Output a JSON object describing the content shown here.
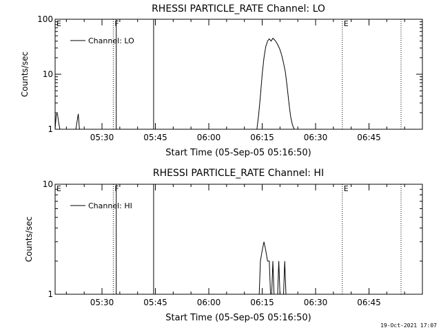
{
  "footer": {
    "timestamp": "19-Oct-2021 17:07"
  },
  "chart_data": [
    {
      "type": "line",
      "title": "RHESSI PARTICLE_RATE Channel: LO",
      "xlabel": "Start Time (05-Sep-05 05:16:50)",
      "ylabel": "Counts/sec",
      "xlim": [
        "05:16:50",
        "07:00:00"
      ],
      "ylim": [
        1,
        100
      ],
      "yscale": "log",
      "grid": false,
      "legend": {
        "placement": "top-left",
        "entries": [
          "Channel: LO"
        ]
      },
      "x_ticks": [
        "05:30",
        "05:45",
        "06:00",
        "06:15",
        "06:30",
        "06:45"
      ],
      "y_ticks": [
        "1",
        "10",
        "100"
      ],
      "markers": [
        {
          "label": "E",
          "time": "05:16:50",
          "style": "dotted"
        },
        {
          "label": "F",
          "time": "05:33:10",
          "style": "dotted"
        },
        {
          "label": "",
          "time": "05:34:00",
          "style": "solid"
        },
        {
          "label": "",
          "time": "05:44:30",
          "style": "solid"
        },
        {
          "label": "E",
          "time": "06:37:30",
          "style": "dotted"
        },
        {
          "label": "",
          "time": "06:54:00",
          "style": "dotted"
        }
      ],
      "series": [
        {
          "name": "Channel: LO",
          "segments": [
            {
              "x": [
                "05:16:50",
                "05:17:10",
                "05:17:30",
                "05:17:50",
                "05:18:10"
              ],
              "y": [
                1,
                1.9,
                1.9,
                1.3,
                1
              ]
            },
            {
              "x": [
                "05:22:40",
                "05:23:00",
                "05:23:20",
                "05:23:40"
              ],
              "y": [
                1,
                1.4,
                1.9,
                1
              ]
            },
            {
              "x": [
                "06:13:30",
                "06:14:00",
                "06:14:30",
                "06:15:00",
                "06:15:30",
                "06:16:00",
                "06:16:30",
                "06:17:00",
                "06:17:30",
                "06:18:00",
                "06:18:30",
                "06:19:00",
                "06:19:30",
                "06:20:00",
                "06:20:30",
                "06:21:00",
                "06:21:30",
                "06:22:00",
                "06:22:30",
                "06:23:00",
                "06:23:30",
                "06:24:00"
              ],
              "y": [
                1,
                1.8,
                4,
                10,
                20,
                32,
                40,
                44,
                40,
                45,
                42,
                38,
                33,
                28,
                22,
                16,
                11,
                6,
                3,
                1.7,
                1.2,
                1
              ]
            }
          ]
        }
      ]
    },
    {
      "type": "line",
      "title": "RHESSI PARTICLE_RATE Channel: HI",
      "xlabel": "Start Time (05-Sep-05 05:16:50)",
      "ylabel": "Counts/sec",
      "xlim": [
        "05:16:50",
        "07:00:00"
      ],
      "ylim": [
        1,
        10
      ],
      "yscale": "log",
      "grid": false,
      "legend": {
        "placement": "top-left",
        "entries": [
          "Channel: HI"
        ]
      },
      "x_ticks": [
        "05:30",
        "05:45",
        "06:00",
        "06:15",
        "06:30",
        "06:45"
      ],
      "y_ticks": [
        "1",
        "10"
      ],
      "markers": [
        {
          "label": "E",
          "time": "05:16:50",
          "style": "dotted"
        },
        {
          "label": "F",
          "time": "05:33:10",
          "style": "dotted"
        },
        {
          "label": "",
          "time": "05:34:00",
          "style": "solid"
        },
        {
          "label": "",
          "time": "05:44:30",
          "style": "solid"
        },
        {
          "label": "E",
          "time": "06:37:30",
          "style": "dotted"
        },
        {
          "label": "",
          "time": "06:54:00",
          "style": "dotted"
        }
      ],
      "series": [
        {
          "name": "Channel: HI",
          "segments": [
            {
              "x": [
                "06:14:10",
                "06:14:30",
                "06:15:00",
                "06:15:30",
                "06:16:00",
                "06:16:30",
                "06:17:00",
                "06:17:20"
              ],
              "y": [
                1,
                2,
                2.5,
                3,
                2.5,
                2,
                2,
                1
              ]
            },
            {
              "x": [
                "06:17:40",
                "06:18:00",
                "06:18:20"
              ],
              "y": [
                1,
                2,
                1
              ]
            },
            {
              "x": [
                "06:19:20",
                "06:19:40",
                "06:20:00"
              ],
              "y": [
                1,
                2,
                1
              ]
            },
            {
              "x": [
                "06:21:00",
                "06:21:20",
                "06:21:40"
              ],
              "y": [
                1,
                2,
                1
              ]
            }
          ]
        }
      ]
    }
  ]
}
